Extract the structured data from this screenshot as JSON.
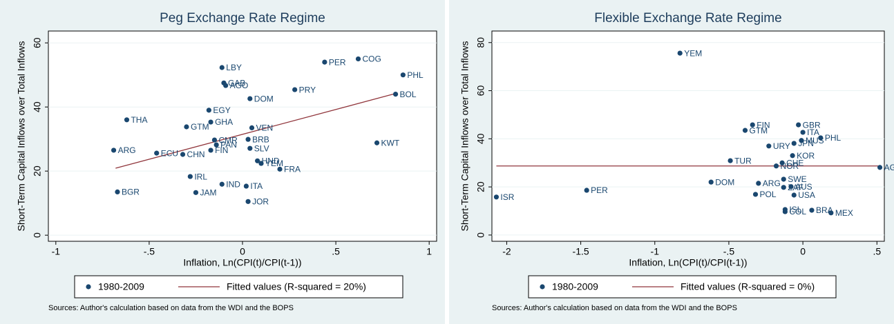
{
  "chart_data": [
    {
      "type": "scatter",
      "title": "Peg Exchange Rate Regime",
      "x_label": "Inflation, Ln(CPI(t)/CPI(t-1))",
      "y_label": "Short-Term Capital Inflows over Total Inflows",
      "xlim": [
        -1.04,
        1.04
      ],
      "ylim": [
        -1.9,
        63.7
      ],
      "xticks": [
        -1,
        {
          "value": -0.5,
          "label": "-.5"
        },
        0,
        {
          "value": 0.5,
          "label": ".5"
        },
        1
      ],
      "yticks": [
        0,
        20,
        40,
        60
      ],
      "series": [
        {
          "name": "1980-2009",
          "color": "#1a476f",
          "labels": [
            "LBY",
            "PER",
            "COG",
            "PHL",
            "BOL",
            "GAB",
            "AGO",
            "PRY",
            "DOM",
            "EGY",
            "THA",
            "GTM",
            "GHA",
            "VEN",
            "KWT",
            "ARG",
            "ECU",
            "CHN",
            "CMR",
            "BRB",
            "PAN",
            "FIN",
            "SLV",
            "HND",
            "YEM",
            "FRA",
            "IRL",
            "IND",
            "ITA",
            "BGR",
            "JAM",
            "JOR"
          ],
          "x": [
            -0.11,
            0.44,
            0.62,
            0.86,
            0.82,
            -0.1,
            -0.09,
            0.28,
            0.04,
            -0.18,
            -0.62,
            -0.3,
            -0.17,
            0.05,
            0.72,
            -0.69,
            -0.46,
            -0.32,
            -0.15,
            0.03,
            -0.14,
            -0.17,
            0.04,
            0.08,
            0.1,
            0.2,
            -0.28,
            -0.11,
            0.02,
            -0.67,
            -0.25,
            0.03
          ],
          "values": [
            52.3,
            54.0,
            55.0,
            50.0,
            44.0,
            47.5,
            46.7,
            45.4,
            42.6,
            39.0,
            36.0,
            33.8,
            35.3,
            33.5,
            28.8,
            26.5,
            25.6,
            25.2,
            29.7,
            29.9,
            28.2,
            26.5,
            27.1,
            23.2,
            22.4,
            20.6,
            18.3,
            15.9,
            15.3,
            13.5,
            13.3,
            10.5
          ]
        },
        {
          "name": "Fitted values (R-squared = 20%)",
          "color": "#90353b",
          "x": [
            -0.68,
            0.82
          ],
          "values": [
            20.9,
            44.2
          ]
        }
      ],
      "note": "Sources: Author's calculation based on data from the WDI and the BOPS"
    },
    {
      "type": "scatter",
      "title": "Flexible Exchange Rate Regime",
      "x_label": "Inflation, Ln(CPI(t)/CPI(t-1))",
      "y_label": "Short-Term Capital Inflows over Total Inflows",
      "xlim": [
        -2.1,
        0.55
      ],
      "ylim": [
        -2.6,
        84.8
      ],
      "xticks": [
        -2,
        -1.5,
        -1,
        {
          "value": -0.5,
          "label": "-.5"
        },
        0,
        {
          "value": 0.5,
          "label": ".5"
        }
      ],
      "yticks": [
        0,
        20,
        40,
        60,
        80
      ],
      "series": [
        {
          "name": "1980-2009",
          "color": "#1a476f",
          "labels": [
            "YEM",
            "FIN",
            "GTM",
            "GBR",
            "ITA",
            "PHL",
            "MUS",
            "JPN",
            "URY",
            "KOR",
            "TUR",
            "CHE",
            "NOR",
            "AGO",
            "SWE",
            "DOM",
            "ARG",
            "ZAF",
            "AUS",
            "PER",
            "POL",
            "USA",
            "ISR",
            "ISL",
            "COL",
            "BRA",
            "MEX"
          ],
          "x": [
            -0.83,
            -0.34,
            -0.39,
            -0.03,
            0.0,
            0.12,
            -0.01,
            -0.06,
            -0.23,
            -0.07,
            -0.49,
            -0.14,
            -0.18,
            0.52,
            -0.13,
            -0.62,
            -0.3,
            -0.13,
            -0.08,
            -1.46,
            -0.32,
            -0.06,
            -2.07,
            -0.12,
            -0.12,
            0.06,
            0.19
          ],
          "values": [
            75.6,
            45.8,
            43.5,
            45.8,
            42.7,
            40.4,
            39.3,
            38.1,
            37.0,
            33.0,
            30.9,
            30.0,
            28.7,
            28.1,
            23.2,
            22.0,
            21.5,
            19.8,
            20.1,
            18.6,
            16.9,
            16.6,
            15.8,
            10.6,
            9.7,
            10.3,
            9.2
          ]
        },
        {
          "name": "Fitted values (R-squared = 0%)",
          "color": "#90353b",
          "x": [
            -2.07,
            0.52
          ],
          "values": [
            28.7,
            28.7
          ]
        }
      ],
      "note": "Sources: Author's calculation based on data from the WDI and the BOPS"
    }
  ]
}
